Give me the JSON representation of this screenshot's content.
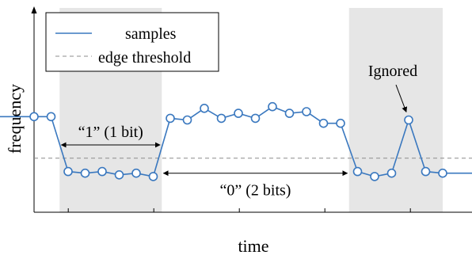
{
  "chart_data": {
    "type": "line",
    "title": "",
    "xlabel": "time",
    "ylabel": "frequency",
    "ylim": [
      0,
      100
    ],
    "xlim": [
      -1,
      25
    ],
    "grid": false,
    "legend": {
      "placement": "top-left",
      "entries": [
        "samples",
        "edge threshold"
      ]
    },
    "series": [
      {
        "name": "samples",
        "color": "#3a78bf",
        "x": [
          0,
          1,
          2,
          3,
          4,
          5,
          6,
          7,
          8,
          9,
          10,
          11,
          12,
          13,
          14,
          15,
          16,
          17,
          18,
          19,
          20,
          21,
          22,
          23,
          24,
          25
        ],
        "y": [
          57,
          57,
          57,
          24,
          23,
          24,
          22,
          23,
          21,
          56,
          55,
          62,
          56,
          59,
          56,
          63,
          59,
          60,
          53,
          53,
          24,
          21,
          23,
          55,
          24,
          23
        ]
      }
    ],
    "edge_threshold": {
      "name": "edge threshold",
      "value": 32,
      "color": "#8c8c8c"
    },
    "shaded_regions": [
      {
        "x_start": 2.5,
        "x_end": 8.5,
        "color": "#e6e6e6"
      },
      {
        "x_start": 19.5,
        "x_end": 25,
        "color": "#e6e6e6"
      }
    ],
    "annotations": [
      {
        "text": "“1” (1 bit)",
        "x_start": 2.6,
        "x_end": 8.4,
        "y": 40
      },
      {
        "text": "“0” (2 bits)",
        "x_start": 8.6,
        "x_end": 19.4,
        "y": 23
      },
      {
        "text": "Ignored",
        "x": 23,
        "y": 79,
        "arrow_to": {
          "x": 23,
          "y": 56
        }
      }
    ]
  }
}
